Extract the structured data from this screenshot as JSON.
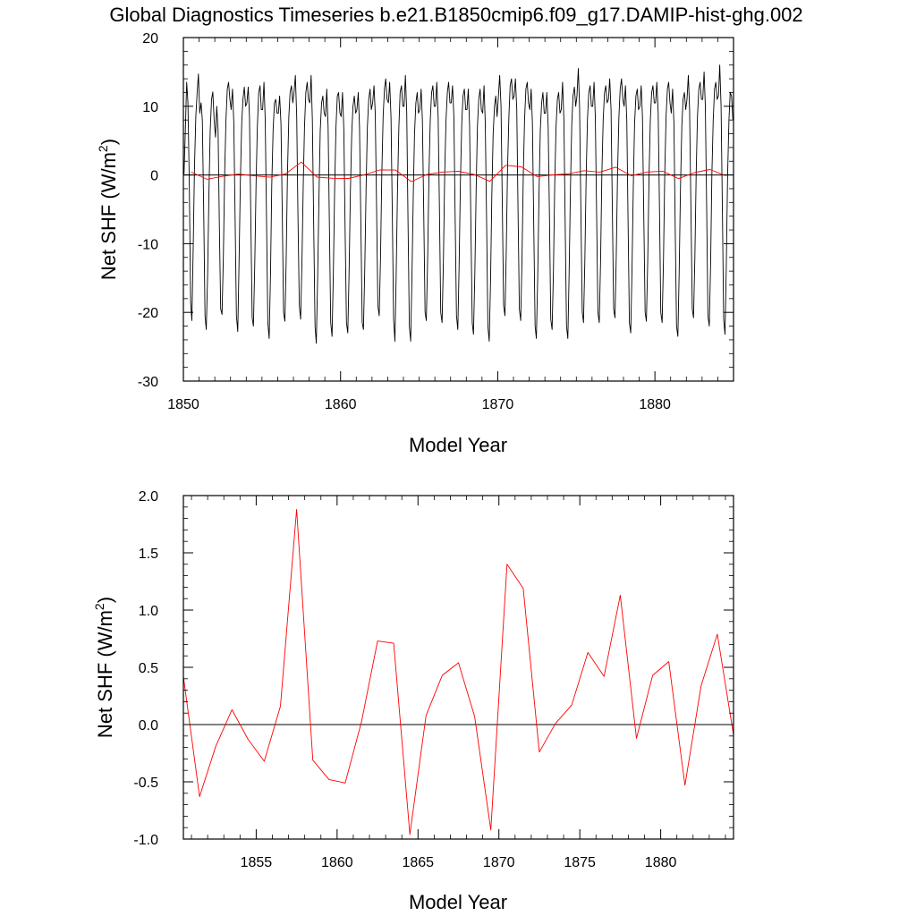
{
  "title": "Global Diagnostics Timeseries b.e21.B1850cmip6.f09_g17.DAMIP-hist-ghg.002",
  "colors": {
    "annual": "#ff0000",
    "monthly": "#000000",
    "axis": "#000000"
  },
  "chart_data": [
    {
      "type": "line",
      "xlabel": "Model Year",
      "ylabel": "Net SHF (W/m",
      "ylabel_sup": "2",
      "ylabel_close": ")",
      "xlim": [
        1850,
        1885
      ],
      "ylim": [
        -30,
        20
      ],
      "x_ticks": [
        1850,
        1860,
        1870,
        1880
      ],
      "x_tick_labels": [
        "1850",
        "1860",
        "1870",
        "1880"
      ],
      "y_ticks": [
        -30,
        -20,
        -10,
        0,
        10,
        20
      ],
      "y_tick_labels": [
        "-30",
        "-20",
        "-10",
        "0",
        "10",
        "20"
      ],
      "zero_line": true,
      "series": [
        {
          "color": "#000000",
          "x_start": 1850.0417,
          "x_step": 0.0833333,
          "values": [
            0.1,
            6.5,
            13.5,
            10.5,
            -1.0,
            -18.5,
            -21.2,
            -10.5,
            1.0,
            8.5,
            12.0,
            14.7,
            9.0,
            10.5,
            8.0,
            -5.0,
            -20.5,
            -22.5,
            -14.5,
            -2.5,
            6.5,
            11.0,
            12.1,
            8.0,
            5.5,
            10.0,
            6.5,
            -8.0,
            -19.5,
            -20.3,
            -12.0,
            0.0,
            8.0,
            12.5,
            13.5,
            11.0,
            9.5,
            12.5,
            7.5,
            -6.0,
            -20.5,
            -22.8,
            -13.0,
            -1.0,
            7.5,
            11.0,
            12.8,
            10.0,
            10.5,
            12.8,
            8.5,
            -6.5,
            -20.8,
            -22.0,
            -13.0,
            -1.0,
            7.0,
            12.0,
            13.0,
            9.5,
            9.5,
            13.5,
            8.0,
            -7.0,
            -21.5,
            -23.8,
            -14.5,
            -1.5,
            6.5,
            10.5,
            11.0,
            9.0,
            9.0,
            11.5,
            7.5,
            -6.0,
            -20.0,
            -21.3,
            -12.5,
            0.5,
            8.5,
            12.0,
            13.0,
            10.5,
            12.0,
            14.5,
            8.5,
            -6.0,
            -19.0,
            -21.0,
            -13.0,
            -1.5,
            7.0,
            12.0,
            13.5,
            11.0,
            10.5,
            14.5,
            8.0,
            -7.5,
            -22.0,
            -24.5,
            -15.0,
            -3.0,
            6.5,
            10.5,
            11.5,
            9.0,
            8.5,
            12.5,
            7.0,
            -8.0,
            -21.5,
            -23.5,
            -14.0,
            -2.0,
            7.0,
            11.5,
            12.0,
            9.0,
            8.5,
            12.0,
            6.5,
            -8.0,
            -21.5,
            -23.0,
            -14.5,
            -2.5,
            6.0,
            10.0,
            11.5,
            9.0,
            9.5,
            12.0,
            7.0,
            -7.0,
            -21.5,
            -22.5,
            -13.5,
            -1.5,
            7.0,
            11.0,
            12.5,
            9.5,
            10.5,
            13.0,
            9.0,
            -5.0,
            -19.0,
            -20.5,
            -12.0,
            0.0,
            8.5,
            12.5,
            14.0,
            11.0,
            10.5,
            13.5,
            8.5,
            -6.0,
            -21.0,
            -24.2,
            -14.5,
            -2.0,
            7.0,
            12.0,
            13.0,
            10.0,
            10.0,
            14.5,
            9.0,
            -6.5,
            -22.0,
            -24.2,
            -15.0,
            -3.0,
            6.0,
            10.5,
            12.0,
            9.0,
            9.5,
            12.5,
            8.0,
            -5.5,
            -20.0,
            -21.2,
            -12.0,
            0.5,
            8.0,
            12.0,
            13.0,
            10.0,
            10.0,
            13.5,
            8.5,
            -5.5,
            -20.0,
            -21.5,
            -12.5,
            0.0,
            8.0,
            12.0,
            13.5,
            10.5,
            10.5,
            13.0,
            8.5,
            -6.0,
            -20.5,
            -22.5,
            -13.5,
            -1.0,
            7.5,
            11.5,
            12.5,
            9.5,
            9.5,
            12.5,
            7.5,
            -7.0,
            -21.5,
            -23.2,
            -14.5,
            -2.0,
            7.0,
            11.0,
            12.5,
            9.5,
            9.0,
            13.0,
            7.5,
            -7.0,
            -22.0,
            -24.2,
            -15.5,
            -3.0,
            6.0,
            10.0,
            11.5,
            8.5,
            11.5,
            14.5,
            10.0,
            -5.0,
            -19.0,
            -20.5,
            -11.5,
            1.0,
            8.5,
            13.0,
            14.0,
            11.0,
            11.5,
            14.0,
            9.5,
            -5.0,
            -19.5,
            -21.2,
            -12.5,
            0.0,
            8.0,
            12.5,
            13.5,
            10.5,
            9.5,
            12.5,
            7.5,
            -7.5,
            -22.0,
            -23.8,
            -15.0,
            -2.5,
            6.5,
            10.5,
            12.0,
            9.0,
            9.0,
            12.0,
            7.0,
            -6.5,
            -21.0,
            -22.5,
            -14.0,
            -1.5,
            7.0,
            11.0,
            12.0,
            9.0,
            9.5,
            13.5,
            8.0,
            -7.0,
            -22.0,
            -23.8,
            -14.5,
            -2.0,
            7.5,
            11.5,
            12.8,
            10.0,
            11.5,
            15.5,
            10.0,
            -5.5,
            -20.0,
            -21.5,
            -12.5,
            0.0,
            8.0,
            12.0,
            13.0,
            10.0,
            10.0,
            13.5,
            8.5,
            -6.0,
            -20.0,
            -21.5,
            -12.5,
            0.0,
            8.0,
            12.0,
            13.0,
            10.5,
            11.0,
            14.0,
            9.5,
            -5.5,
            -19.5,
            -20.8,
            -12.0,
            0.5,
            8.5,
            12.5,
            14.0,
            11.0,
            10.0,
            13.0,
            8.0,
            -6.5,
            -21.5,
            -23.0,
            -14.0,
            -1.5,
            7.5,
            11.5,
            12.5,
            9.5,
            10.0,
            13.0,
            8.5,
            -6.0,
            -20.0,
            -21.3,
            -12.5,
            0.0,
            8.0,
            12.0,
            13.0,
            10.5,
            10.5,
            13.5,
            9.0,
            -5.5,
            -20.0,
            -21.5,
            -12.5,
            0.0,
            8.5,
            12.5,
            13.5,
            10.5,
            9.0,
            12.5,
            7.5,
            -7.5,
            -22.0,
            -23.5,
            -14.5,
            -2.0,
            7.0,
            11.0,
            12.0,
            9.5,
            11.0,
            14.5,
            9.5,
            -5.0,
            -19.5,
            -20.8,
            -12.0,
            0.5,
            8.5,
            12.5,
            13.5,
            11.0,
            11.0,
            15.0,
            10.0,
            -5.0,
            -20.5,
            -22.0,
            -13.0,
            0.0,
            8.0,
            12.5,
            13.5,
            11.0,
            11.5,
            16.0,
            10.0,
            -5.5,
            -21.0,
            -23.2,
            -13.5,
            0.0,
            8.0,
            12.0,
            11.5,
            8.0
          ]
        },
        {
          "color": "#ff0000",
          "x": [
            1850.5,
            1851.5,
            1852.5,
            1853.5,
            1854.5,
            1855.5,
            1856.5,
            1857.5,
            1858.5,
            1859.5,
            1860.5,
            1861.5,
            1862.5,
            1863.5,
            1864.5,
            1865.5,
            1866.5,
            1867.5,
            1868.5,
            1869.5,
            1870.5,
            1871.5,
            1872.5,
            1873.5,
            1874.5,
            1875.5,
            1876.5,
            1877.5,
            1878.5,
            1879.5,
            1880.5,
            1881.5,
            1882.5,
            1883.5,
            1884.5
          ],
          "values": [
            0.42,
            -0.63,
            -0.19,
            0.13,
            -0.13,
            -0.32,
            0.16,
            1.88,
            -0.31,
            -0.48,
            -0.51,
            0.02,
            0.73,
            0.71,
            -0.96,
            0.08,
            0.43,
            0.54,
            0.07,
            -0.92,
            1.4,
            1.19,
            -0.24,
            0.01,
            0.17,
            0.63,
            0.42,
            1.13,
            -0.12,
            0.43,
            0.55,
            -0.53,
            0.34,
            0.79,
            -0.09
          ]
        }
      ]
    },
    {
      "type": "line",
      "xlabel": "Model Year",
      "ylabel": "Net SHF (W/m",
      "ylabel_sup": "2",
      "ylabel_close": ")",
      "xlim": [
        1850.5,
        1884.5
      ],
      "ylim": [
        -1.0,
        2.0
      ],
      "x_ticks": [
        1855,
        1860,
        1865,
        1870,
        1875,
        1880
      ],
      "x_tick_labels": [
        "1855",
        "1860",
        "1865",
        "1870",
        "1875",
        "1880"
      ],
      "y_ticks": [
        -1.0,
        -0.5,
        0.0,
        0.5,
        1.0,
        1.5,
        2.0
      ],
      "y_tick_labels": [
        "-1.0",
        "-0.5",
        "0.0",
        "0.5",
        "1.0",
        "1.5",
        "2.0"
      ],
      "zero_line": true,
      "series": [
        {
          "color": "#ff0000",
          "x": [
            1850.5,
            1851.5,
            1852.5,
            1853.5,
            1854.5,
            1855.5,
            1856.5,
            1857.5,
            1858.5,
            1859.5,
            1860.5,
            1861.5,
            1862.5,
            1863.5,
            1864.5,
            1865.5,
            1866.5,
            1867.5,
            1868.5,
            1869.5,
            1870.5,
            1871.5,
            1872.5,
            1873.5,
            1874.5,
            1875.5,
            1876.5,
            1877.5,
            1878.5,
            1879.5,
            1880.5,
            1881.5,
            1882.5,
            1883.5,
            1884.5
          ],
          "values": [
            0.42,
            -0.63,
            -0.19,
            0.13,
            -0.13,
            -0.32,
            0.16,
            1.88,
            -0.31,
            -0.48,
            -0.51,
            0.02,
            0.73,
            0.71,
            -0.96,
            0.08,
            0.43,
            0.54,
            0.07,
            -0.92,
            1.4,
            1.19,
            -0.24,
            0.01,
            0.17,
            0.63,
            0.42,
            1.13,
            -0.12,
            0.43,
            0.55,
            -0.53,
            0.34,
            0.79,
            -0.09
          ]
        }
      ]
    }
  ]
}
